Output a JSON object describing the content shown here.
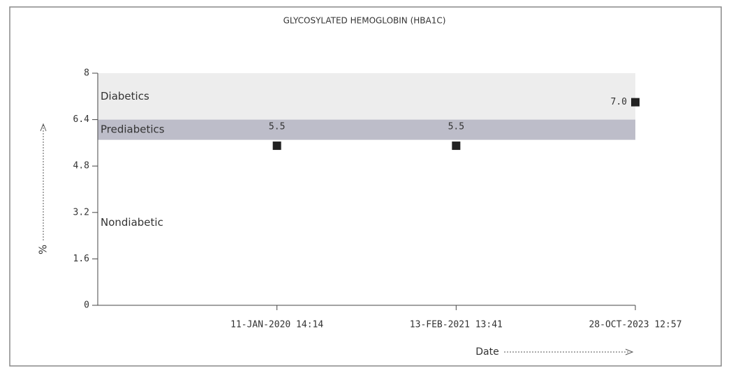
{
  "chart_data": {
    "type": "scatter",
    "title": "GLYCOSYLATED HEMOGLOBIN (HBA1C)",
    "x_label": "Date",
    "y_label": "%",
    "categories": [
      "11-JAN-2020 14:14",
      "13-FEB-2021 13:41",
      "28-OCT-2023 12:57"
    ],
    "values": [
      5.5,
      5.5,
      7.0
    ],
    "value_labels": [
      "5.5",
      "5.5",
      "7.0"
    ],
    "color": "#222222",
    "ylim": [
      0,
      8
    ],
    "yticks": [
      0,
      1.6,
      3.2,
      4.8,
      6.4,
      8
    ],
    "bands": [
      {
        "label": "Diabetics",
        "from": 6.4,
        "to": 8,
        "color": "#ededed"
      },
      {
        "label": "Prediabetics",
        "from": 5.7,
        "to": 6.4,
        "color": "#bdbdc9"
      },
      {
        "label": "Nondiabetic",
        "from": 0,
        "to": 5.7,
        "color": "#ffffff"
      }
    ]
  }
}
